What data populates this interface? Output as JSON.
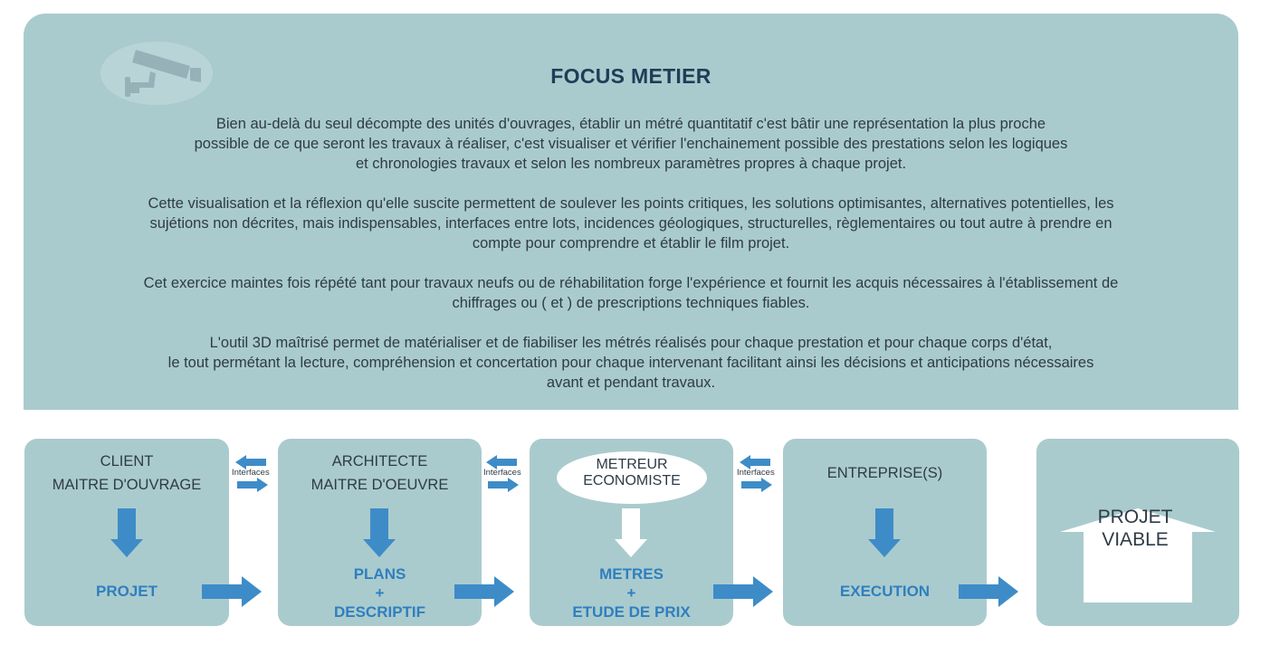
{
  "header": {
    "title": "FOCUS METIER"
  },
  "paragraphs": [
    {
      "lines": [
        "Bien au-delà du seul décompte des unités d'ouvrages, établir un métré quantitatif c'est bâtir une représentation la plus proche",
        "possible de ce que seront les travaux à réaliser, c'est visualiser et vérifier l'enchainement possible des prestations selon les logiques",
        "et chronologies travaux et selon les nombreux paramètres propres à chaque projet."
      ]
    },
    {
      "lines": [
        "Cette visualisation et la réflexion qu'elle suscite permettent de soulever les points critiques, les solutions optimisantes, alternatives potentielles, les",
        "sujétions non décrites, mais indispensables, interfaces entre lots, incidences géologiques, structurelles, règlementaires ou tout autre à prendre en",
        "compte pour comprendre et établir le film projet."
      ]
    },
    {
      "lines": [
        "Cet exercice maintes fois répété tant pour travaux neufs ou de réhabilitation forge l'expérience et fournit les acquis nécessaires à l'établissement de",
        "chiffrages ou ( et ) de prescriptions techniques fiables."
      ]
    },
    {
      "lines": [
        "L'outil 3D maîtrisé permet de matérialiser et de fiabiliser les métrés réalisés pour chaque prestation et pour chaque corps d'état,",
        "le tout permétant la lecture, compréhension et concertation pour chaque intervenant facilitant ainsi les décisions et anticipations nécessaires",
        "avant et pendant travaux."
      ]
    }
  ],
  "flow": {
    "interfaces_label": "Interfaces",
    "boxes": [
      {
        "role": [
          "CLIENT",
          "MAITRE D'OUVRAGE"
        ],
        "result": [
          "PROJET"
        ]
      },
      {
        "role": [
          "ARCHITECTE",
          "MAITRE D'OEUVRE"
        ],
        "result": [
          "PLANS",
          "+",
          "DESCRIPTIF"
        ]
      },
      {
        "role": [
          "METREUR",
          "ECONOMISTE"
        ],
        "result": [
          "METRES",
          "+",
          "ETUDE DE PRIX"
        ]
      },
      {
        "role": [
          "ENTREPRISE(S)"
        ],
        "result": [
          "EXECUTION"
        ]
      }
    ],
    "final": [
      "PROJET",
      "VIABLE"
    ]
  },
  "colors": {
    "panel": "#aacbcd",
    "arrow": "#3d8cc8",
    "title": "#1f3c57",
    "result": "#2f7fbf"
  },
  "icons": {
    "camera": "security-camera-icon"
  }
}
